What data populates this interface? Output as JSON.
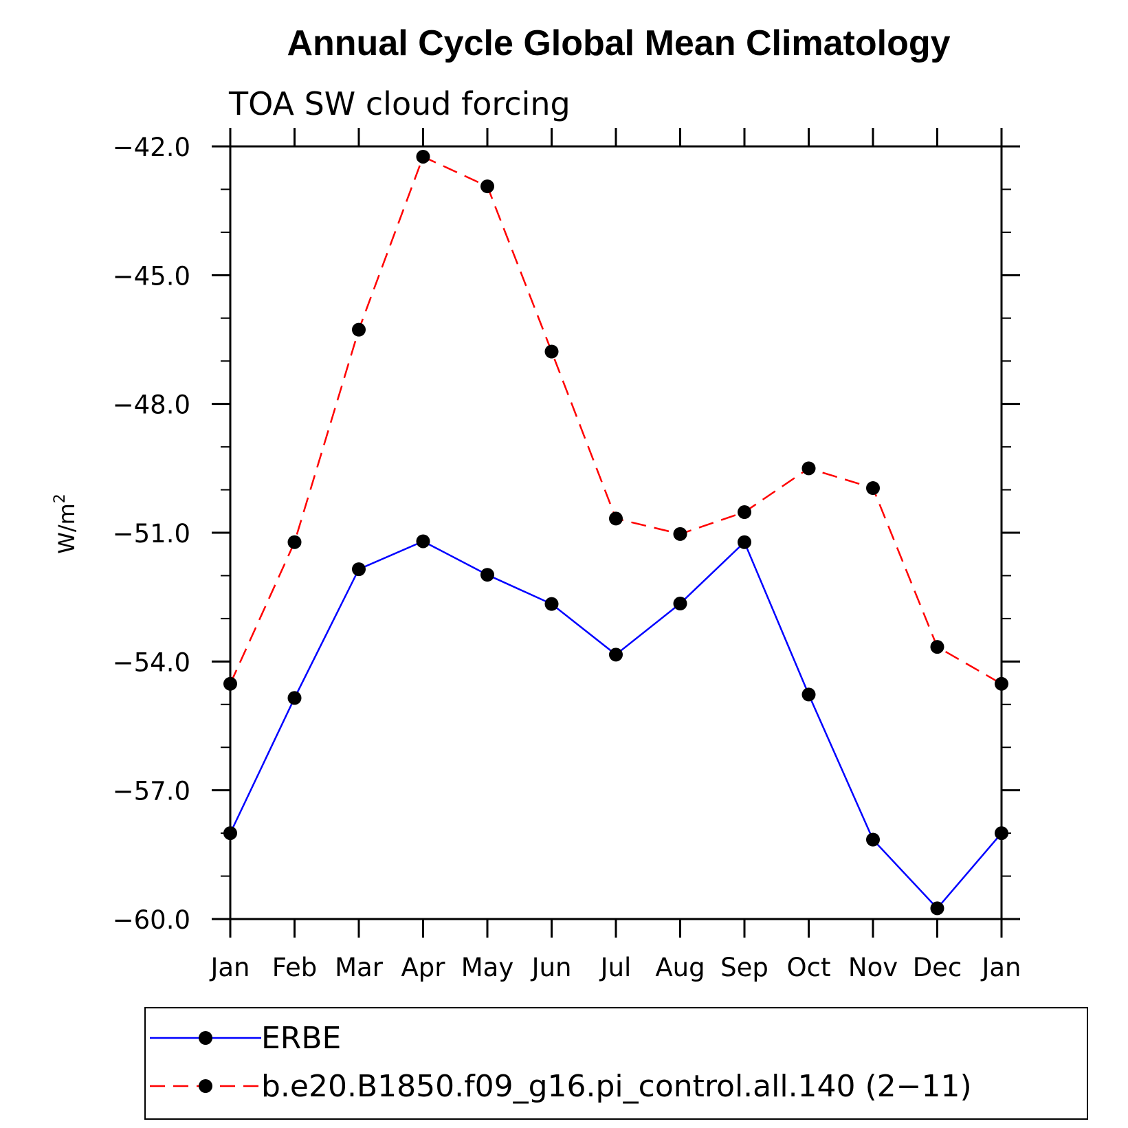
{
  "chart_data": {
    "type": "line",
    "title": "Annual Cycle Global Mean Climatology",
    "subtitle": "TOA SW cloud forcing",
    "ylabel": "W/m",
    "ylabel_sup": "2",
    "xlabel": "",
    "categories": [
      "Jan",
      "Feb",
      "Mar",
      "Apr",
      "May",
      "Jun",
      "Jul",
      "Aug",
      "Sep",
      "Oct",
      "Nov",
      "Dec",
      "Jan"
    ],
    "ylim": [
      -60.0,
      -42.0
    ],
    "yticks": [
      "-42.0",
      "-45.0",
      "-48.0",
      "-51.0",
      "-54.0",
      "-57.0",
      "-60.0"
    ],
    "ytick_values": [
      -42,
      -45,
      -48,
      -51,
      -54,
      -57,
      -60
    ],
    "legend_position": "bottom",
    "grid": false,
    "series": [
      {
        "name": "ERBE",
        "color": "#0000ff",
        "style": "solid",
        "values": [
          -58.0,
          -54.85,
          -51.85,
          -51.2,
          -51.98,
          -52.66,
          -53.84,
          -52.65,
          -51.22,
          -54.77,
          -58.15,
          -59.75,
          -58.0
        ]
      },
      {
        "name": "b.e20.B1850.f09_g16.pi_control.all.140 (2−11)",
        "color": "#ff0000",
        "style": "dashed",
        "values": [
          -54.52,
          -51.22,
          -46.27,
          -42.24,
          -42.93,
          -46.78,
          -50.67,
          -51.03,
          -50.52,
          -49.5,
          -49.96,
          -53.66,
          -54.52
        ]
      }
    ]
  }
}
